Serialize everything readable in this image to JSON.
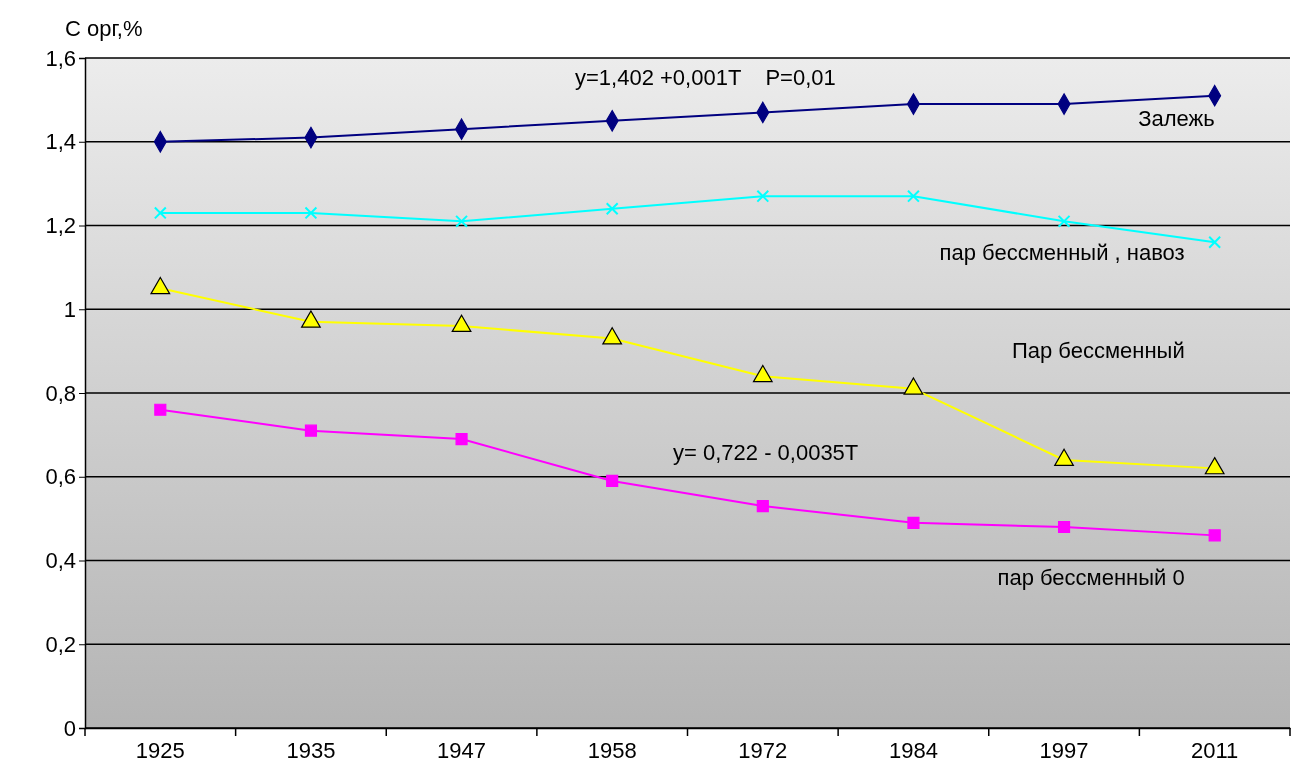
{
  "chart_data": {
    "type": "line",
    "ylabel": "С орг,%",
    "categories": [
      "1925",
      "1935",
      "1947",
      "1958",
      "1972",
      "1984",
      "1997",
      "2011"
    ],
    "series": [
      {
        "name": "Залежь",
        "color": "#000080",
        "marker": "diamond",
        "values": [
          1.4,
          1.41,
          1.43,
          1.45,
          1.47,
          1.49,
          1.49,
          1.51
        ]
      },
      {
        "name": "пар бессменный , навоз",
        "color": "#00ffff",
        "marker": "cross",
        "values": [
          1.23,
          1.23,
          1.21,
          1.24,
          1.27,
          1.27,
          1.21,
          1.16
        ]
      },
      {
        "name": "Пар бессменный",
        "color": "#ffff00",
        "marker": "triangle",
        "values": [
          1.05,
          0.97,
          0.96,
          0.93,
          0.84,
          0.81,
          0.64,
          0.62
        ]
      },
      {
        "name": "пар бессменный 0",
        "color": "#ff00ff",
        "marker": "square",
        "values": [
          0.76,
          0.71,
          0.69,
          0.59,
          0.53,
          0.49,
          0.48,
          0.46
        ]
      }
    ],
    "ylim": [
      0,
      1.6
    ],
    "yticks": [
      0,
      {
        "value": 0.2,
        "label": "0,2"
      },
      {
        "value": 0.4,
        "label": "0,4"
      },
      {
        "value": 0.6,
        "label": "0,6"
      },
      {
        "value": 0.8,
        "label": "0,8"
      },
      1,
      {
        "value": 1.2,
        "label": "1,2"
      },
      {
        "value": 1.4,
        "label": "1,4"
      },
      {
        "value": 1.6,
        "label": "1,6"
      }
    ],
    "grid": "y",
    "annotations": [
      "y=1,402 +0,001T    P=0,01",
      "y= 0,722 - 0,0035T"
    ]
  }
}
